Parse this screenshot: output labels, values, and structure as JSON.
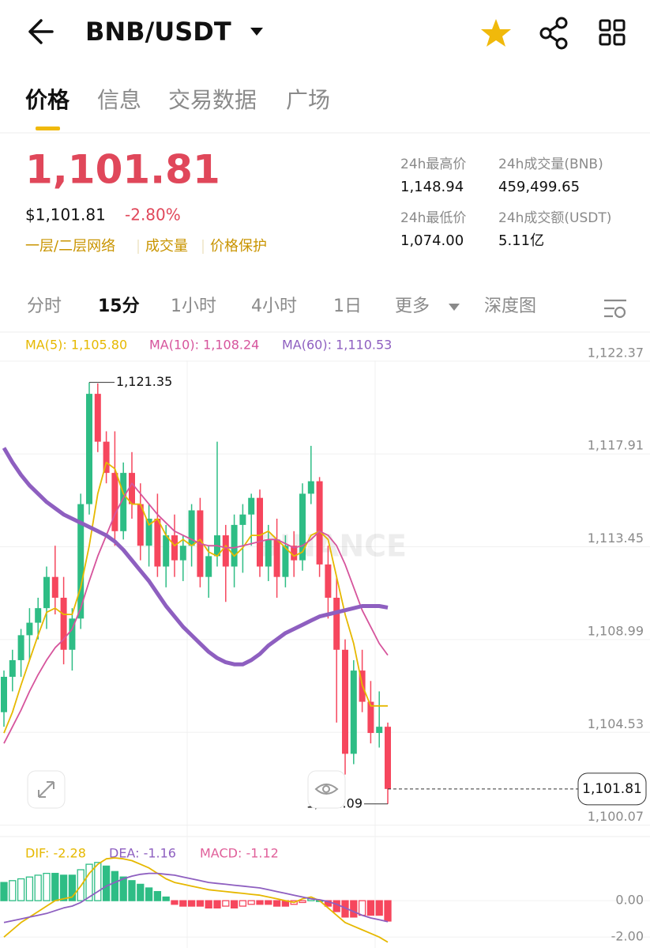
{
  "header": {
    "title": "BNB/USDT"
  },
  "tabs": [
    "价格",
    "信息",
    "交易数据",
    "广场"
  ],
  "price": {
    "last": "1,101.81",
    "usd": "$1,101.81",
    "change": "-2.80%",
    "links": [
      "一层/二层网络",
      "成交量",
      "价格保护"
    ]
  },
  "stats": [
    {
      "label": "24h最高价",
      "value": "1,148.94"
    },
    {
      "label": "24h成交量(BNB)",
      "value": "459,499.65"
    },
    {
      "label": "24h最低价",
      "value": "1,074.00"
    },
    {
      "label": "24h成交额(USDT)",
      "value": "5.11亿"
    }
  ],
  "intervals": [
    "分时",
    "15分",
    "1小时",
    "4小时",
    "1日",
    "更多",
    "深度图"
  ],
  "chart_data": [
    {
      "type": "candlestick",
      "watermark": "BINANCE",
      "up_color": "#2ebd85",
      "down_color": "#f6465d",
      "ohlc": [
        [
          1105.5,
          1107.5,
          1104.8,
          1107.2
        ],
        [
          1107.2,
          1108.5,
          1106.5,
          1108.0
        ],
        [
          1108.0,
          1109.5,
          1107.2,
          1109.2
        ],
        [
          1109.2,
          1110.5,
          1108.0,
          1109.8
        ],
        [
          1109.8,
          1111.0,
          1109.0,
          1110.5
        ],
        [
          1110.5,
          1112.5,
          1109.5,
          1112.0
        ],
        [
          1112.0,
          1113.5,
          1110.2,
          1111.0
        ],
        [
          1111.0,
          1112.0,
          1107.8,
          1108.5
        ],
        [
          1108.5,
          1110.5,
          1107.5,
          1110.0
        ],
        [
          1110.0,
          1116.0,
          1109.5,
          1115.5
        ],
        [
          1115.5,
          1121.35,
          1115.0,
          1120.8
        ],
        [
          1120.8,
          1121.3,
          1118.0,
          1118.5
        ],
        [
          1118.5,
          1119.0,
          1116.5,
          1117.0
        ],
        [
          1117.0,
          1119.0,
          1113.5,
          1114.2
        ],
        [
          1114.2,
          1117.5,
          1113.8,
          1117.0
        ],
        [
          1117.0,
          1118.0,
          1114.8,
          1115.5
        ],
        [
          1115.5,
          1116.5,
          1112.8,
          1113.5
        ],
        [
          1113.5,
          1115.5,
          1112.5,
          1114.8
        ],
        [
          1114.8,
          1116.0,
          1112.0,
          1112.5
        ],
        [
          1112.5,
          1114.5,
          1111.5,
          1114.0
        ],
        [
          1114.0,
          1115.0,
          1112.0,
          1112.8
        ],
        [
          1112.8,
          1114.0,
          1111.8,
          1113.5
        ],
        [
          1113.5,
          1115.5,
          1112.5,
          1115.2
        ],
        [
          1115.2,
          1115.8,
          1111.5,
          1112.0
        ],
        [
          1112.0,
          1113.5,
          1111.0,
          1113.0
        ],
        [
          1113.0,
          1118.5,
          1112.5,
          1114.0
        ],
        [
          1114.0,
          1114.5,
          1110.8,
          1112.5
        ],
        [
          1112.5,
          1115.0,
          1111.5,
          1114.5
        ],
        [
          1114.5,
          1115.5,
          1112.2,
          1115.0
        ],
        [
          1115.0,
          1116.0,
          1113.5,
          1115.8
        ],
        [
          1115.8,
          1116.2,
          1112.0,
          1112.5
        ],
        [
          1112.5,
          1114.5,
          1111.8,
          1113.8
        ],
        [
          1113.8,
          1114.8,
          1111.0,
          1112.0
        ],
        [
          1112.0,
          1114.0,
          1111.5,
          1113.5
        ],
        [
          1113.5,
          1114.2,
          1112.0,
          1112.8
        ],
        [
          1112.8,
          1116.5,
          1112.3,
          1116.0
        ],
        [
          1116.0,
          1118.3,
          1115.5,
          1116.6
        ],
        [
          1116.6,
          1116.8,
          1112.0,
          1112.6
        ],
        [
          1112.6,
          1113.5,
          1110.0,
          1111.0
        ],
        [
          1111.0,
          1112.0,
          1105.0,
          1108.5
        ],
        [
          1108.5,
          1109.0,
          1102.5,
          1103.5
        ],
        [
          1103.5,
          1108.0,
          1103.0,
          1107.5
        ],
        [
          1107.5,
          1108.5,
          1105.5,
          1106.0
        ],
        [
          1106.0,
          1107.0,
          1104.0,
          1104.5
        ],
        [
          1104.5,
          1106.5,
          1103.8,
          1104.8
        ],
        [
          1104.8,
          1105.0,
          1101.09,
          1101.81
        ]
      ],
      "series": [
        {
          "name": "MA(5): 1,105.80",
          "color": "#e6b800",
          "values": [
            1104.5,
            1105.5,
            1106.8,
            1108.0,
            1109.2,
            1110.3,
            1110.5,
            1110.2,
            1110.2,
            1111.5,
            1113.5,
            1116.0,
            1117.5,
            1117.2,
            1116.0,
            1115.5,
            1115.5,
            1114.5,
            1114.8,
            1114.0,
            1113.5,
            1113.8,
            1113.5,
            1113.8,
            1113.2,
            1113.0,
            1113.5,
            1113.0,
            1113.4,
            1114.0,
            1114.0,
            1114.2,
            1113.8,
            1113.4,
            1113.0,
            1113.2,
            1114.0,
            1114.2,
            1113.8,
            1112.0,
            1110.2,
            1108.8,
            1106.8,
            1105.8,
            1105.8,
            1105.8
          ]
        },
        {
          "name": "MA(10): 1,108.24",
          "color": "#d6549c",
          "values": [
            1104.0,
            1104.8,
            1105.6,
            1106.5,
            1107.3,
            1108.0,
            1108.6,
            1109.0,
            1109.5,
            1110.5,
            1111.8,
            1113.0,
            1114.0,
            1115.0,
            1115.8,
            1116.5,
            1116.0,
            1115.5,
            1115.0,
            1114.6,
            1114.2,
            1114.0,
            1113.8,
            1113.6,
            1113.5,
            1113.5,
            1113.4,
            1113.4,
            1113.5,
            1113.6,
            1113.7,
            1113.8,
            1113.8,
            1113.6,
            1113.4,
            1113.5,
            1113.8,
            1114.2,
            1114.0,
            1113.5,
            1112.6,
            1111.5,
            1110.4,
            1109.6,
            1108.8,
            1108.24
          ]
        },
        {
          "name": "MA(60): 1,110.53",
          "color": "#8e5fc0",
          "values": [
            1118.2,
            1117.5,
            1116.9,
            1116.4,
            1116.0,
            1115.6,
            1115.3,
            1115.0,
            1114.8,
            1114.6,
            1114.4,
            1114.2,
            1114.0,
            1113.7,
            1113.3,
            1112.8,
            1112.3,
            1111.8,
            1111.2,
            1110.6,
            1110.1,
            1109.6,
            1109.2,
            1108.8,
            1108.4,
            1108.1,
            1107.9,
            1107.8,
            1107.8,
            1108.0,
            1108.3,
            1108.7,
            1109.0,
            1109.3,
            1109.5,
            1109.7,
            1109.9,
            1110.1,
            1110.2,
            1110.3,
            1110.4,
            1110.5,
            1110.6,
            1110.6,
            1110.6,
            1110.53
          ]
        }
      ],
      "ylim": [
        1099.6,
        1122.4
      ],
      "yticks": [
        {
          "value": 1122.37,
          "label": "1,122.37"
        },
        {
          "value": 1117.91,
          "label": "1,117.91"
        },
        {
          "value": 1113.45,
          "label": "1,113.45"
        },
        {
          "value": 1108.99,
          "label": "1,108.99"
        },
        {
          "value": 1104.53,
          "label": "1,104.53"
        },
        {
          "value": 1100.07,
          "label": "1,100.07"
        }
      ],
      "high": {
        "value": 1121.35,
        "label": "1,121.35"
      },
      "low": {
        "value": 1101.09,
        "label": "1,101.09"
      },
      "last_price": {
        "value": 1101.81,
        "label": "1,101.81"
      },
      "grid": true
    },
    {
      "type": "macd",
      "series": [
        {
          "name": "DIF: -2.28",
          "color": "#e6b800",
          "values": [
            -2.0,
            -1.6,
            -1.2,
            -0.9,
            -0.6,
            -0.3,
            0.0,
            0.1,
            0.2,
            0.8,
            1.5,
            2.0,
            2.3,
            2.35,
            2.3,
            2.2,
            2.0,
            1.8,
            1.5,
            1.2,
            1.0,
            0.9,
            0.8,
            0.7,
            0.6,
            0.55,
            0.5,
            0.45,
            0.4,
            0.35,
            0.3,
            0.2,
            0.1,
            0.0,
            -0.1,
            0.1,
            0.2,
            0.0,
            -0.4,
            -0.8,
            -1.2,
            -1.4,
            -1.6,
            -1.8,
            -2.0,
            -2.28
          ]
        },
        {
          "name": "DEA: -1.16",
          "color": "#8e5fc0",
          "values": [
            -1.2,
            -1.1,
            -1.0,
            -0.9,
            -0.8,
            -0.7,
            -0.55,
            -0.4,
            -0.3,
            -0.1,
            0.2,
            0.5,
            0.8,
            1.0,
            1.2,
            1.35,
            1.45,
            1.5,
            1.5,
            1.45,
            1.4,
            1.3,
            1.2,
            1.1,
            1.0,
            0.95,
            0.9,
            0.85,
            0.8,
            0.75,
            0.7,
            0.6,
            0.5,
            0.4,
            0.3,
            0.2,
            0.1,
            0.05,
            -0.05,
            -0.2,
            -0.4,
            -0.6,
            -0.8,
            -0.95,
            -1.05,
            -1.16
          ]
        },
        {
          "name": "MACD: -1.12",
          "color": "#e0609a",
          "values": [
            1.0,
            1.1,
            1.2,
            1.3,
            1.4,
            1.5,
            1.5,
            1.4,
            1.4,
            1.7,
            2.0,
            2.1,
            1.9,
            1.6,
            1.3,
            1.1,
            0.9,
            0.7,
            0.5,
            0.2,
            -0.2,
            -0.3,
            -0.3,
            -0.3,
            -0.4,
            -0.4,
            -0.3,
            -0.4,
            -0.3,
            -0.2,
            -0.2,
            -0.2,
            -0.3,
            -0.3,
            -0.2,
            -0.1,
            0.1,
            0.0,
            -0.3,
            -0.6,
            -0.9,
            -0.9,
            -0.8,
            -0.8,
            -0.8,
            -1.12
          ]
        }
      ],
      "ylim": [
        -2.6,
        3.09
      ],
      "yticks": [
        {
          "value": 0,
          "label": "0.00"
        },
        {
          "value": -2,
          "label": "-2.00"
        }
      ]
    }
  ]
}
